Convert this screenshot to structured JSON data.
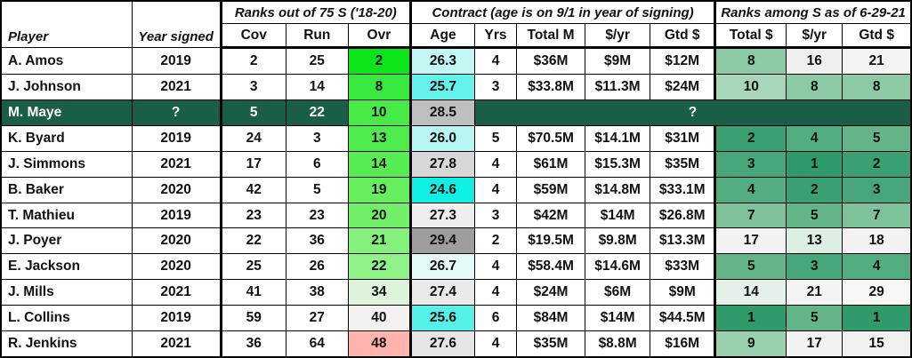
{
  "chart_data": {
    "type": "table",
    "header": {
      "player": "Player",
      "year_signed": "Year signed",
      "groups": [
        "Ranks out of 75 S ('18-20)",
        "Contract (age is on 9/1 in year of signing)",
        "Ranks among S as of 6-29-21"
      ],
      "subcols": [
        "Cov",
        "Run",
        "Ovr",
        "Age",
        "Yrs",
        "Total M",
        "$/yr",
        "Gtd $",
        "Total $",
        "$/yr",
        "Gtd $"
      ]
    },
    "rows": [
      {
        "player": "A. Amos",
        "year_signed": "2019",
        "cov": "2",
        "run": "25",
        "ovr": {
          "v": "2",
          "bg": "#0be51a"
        },
        "age": {
          "v": "26.3",
          "bg": "#c2f7f3"
        },
        "yrs": "4",
        "total_m": "$36M",
        "per_yr": "$9M",
        "gtd": "$12M",
        "rank_total": {
          "v": "8",
          "bg": "#8ccaa5"
        },
        "rank_per_yr": {
          "v": "16",
          "bg": "#efefef"
        },
        "rank_gtd": {
          "v": "21",
          "bg": "#f4f4f4"
        }
      },
      {
        "player": "J. Johnson",
        "year_signed": "2021",
        "cov": "3",
        "run": "14",
        "ovr": {
          "v": "8",
          "bg": "#38e83e"
        },
        "age": {
          "v": "25.7",
          "bg": "#63f2ec"
        },
        "yrs": "3",
        "total_m": "$33.8M",
        "per_yr": "$11.3M",
        "gtd": "$24M",
        "rank_total": {
          "v": "10",
          "bg": "#a7d7b8"
        },
        "rank_per_yr": {
          "v": "8",
          "bg": "#8ccaa5"
        },
        "rank_gtd": {
          "v": "8",
          "bg": "#8ccaa5"
        }
      },
      {
        "player": "M. Maye",
        "year_signed": "?",
        "cov": "5",
        "run": "22",
        "ovr": {
          "v": "10",
          "bg": "#47ea46"
        },
        "age": {
          "v": "28.5",
          "bg": "#bfbfbf"
        },
        "merged": "?",
        "highlight": true
      },
      {
        "player": "K. Byard",
        "year_signed": "2019",
        "cov": "24",
        "run": "3",
        "ovr": {
          "v": "13",
          "bg": "#4feb4d"
        },
        "age": {
          "v": "26.0",
          "bg": "#b7f6f2"
        },
        "yrs": "5",
        "total_m": "$70.5M",
        "per_yr": "$14.1M",
        "gtd": "$31M",
        "rank_total": {
          "v": "2",
          "bg": "#3aa071"
        },
        "rank_per_yr": {
          "v": "4",
          "bg": "#52ad80"
        },
        "rank_gtd": {
          "v": "5",
          "bg": "#63b589"
        }
      },
      {
        "player": "J. Simmons",
        "year_signed": "2021",
        "cov": "17",
        "run": "6",
        "ovr": {
          "v": "14",
          "bg": "#58ec53"
        },
        "age": {
          "v": "27.8",
          "bg": "#d7d7d7"
        },
        "yrs": "4",
        "total_m": "$61M",
        "per_yr": "$15.3M",
        "gtd": "$35M",
        "rank_total": {
          "v": "3",
          "bg": "#47a77a"
        },
        "rank_per_yr": {
          "v": "1",
          "bg": "#2f9a6a"
        },
        "rank_gtd": {
          "v": "2",
          "bg": "#3aa071"
        }
      },
      {
        "player": "B. Baker",
        "year_signed": "2020",
        "cov": "42",
        "run": "5",
        "ovr": {
          "v": "19",
          "bg": "#67ee5e"
        },
        "age": {
          "v": "24.6",
          "bg": "#10efe4"
        },
        "yrs": "4",
        "total_m": "$59M",
        "per_yr": "$14.8M",
        "gtd": "$33.1M",
        "rank_total": {
          "v": "4",
          "bg": "#52ad80"
        },
        "rank_per_yr": {
          "v": "2",
          "bg": "#3aa071"
        },
        "rank_gtd": {
          "v": "3",
          "bg": "#47a77a"
        }
      },
      {
        "player": "T. Mathieu",
        "year_signed": "2019",
        "cov": "23",
        "run": "23",
        "ovr": {
          "v": "20",
          "bg": "#71ef68"
        },
        "age": {
          "v": "27.3",
          "bg": "#efeeee"
        },
        "yrs": "3",
        "total_m": "$42M",
        "per_yr": "$14M",
        "gtd": "$26.8M",
        "rank_total": {
          "v": "7",
          "bg": "#7dc29b"
        },
        "rank_per_yr": {
          "v": "5",
          "bg": "#63b589"
        },
        "rank_gtd": {
          "v": "7",
          "bg": "#7dc29b"
        }
      },
      {
        "player": "J. Poyer",
        "year_signed": "2020",
        "cov": "22",
        "run": "36",
        "ovr": {
          "v": "21",
          "bg": "#85f17d"
        },
        "age": {
          "v": "29.4",
          "bg": "#9e9e9e"
        },
        "yrs": "2",
        "total_m": "$19.5M",
        "per_yr": "$9.8M",
        "gtd": "$13.3M",
        "rank_total": {
          "v": "17",
          "bg": "#f2f2f2"
        },
        "rank_per_yr": {
          "v": "13",
          "bg": "#dcefe3"
        },
        "rank_gtd": {
          "v": "18",
          "bg": "#f2f2f2"
        }
      },
      {
        "player": "E. Jackson",
        "year_signed": "2020",
        "cov": "25",
        "run": "26",
        "ovr": {
          "v": "22",
          "bg": "#91f28a"
        },
        "age": {
          "v": "26.7",
          "bg": "#e4faf8"
        },
        "yrs": "4",
        "total_m": "$58.4M",
        "per_yr": "$14.6M",
        "gtd": "$33M",
        "rank_total": {
          "v": "5",
          "bg": "#63b589"
        },
        "rank_per_yr": {
          "v": "3",
          "bg": "#47a77a"
        },
        "rank_gtd": {
          "v": "4",
          "bg": "#52ad80"
        }
      },
      {
        "player": "J. Mills",
        "year_signed": "2021",
        "cov": "41",
        "run": "38",
        "ovr": {
          "v": "34",
          "bg": "#def3dc"
        },
        "age": {
          "v": "27.4",
          "bg": "#eaeaea"
        },
        "yrs": "4",
        "total_m": "$24M",
        "per_yr": "$6M",
        "gtd": "$9M",
        "rank_total": {
          "v": "14",
          "bg": "#e4f1e8"
        },
        "rank_per_yr": {
          "v": "21",
          "bg": "#f4f4f4"
        },
        "rank_gtd": {
          "v": "29",
          "bg": "#f7f7f7"
        }
      },
      {
        "player": "L. Collins",
        "year_signed": "2019",
        "cov": "59",
        "run": "27",
        "ovr": {
          "v": "40",
          "bg": "#f2f1ef"
        },
        "age": {
          "v": "25.6",
          "bg": "#55f1e9"
        },
        "yrs": "6",
        "total_m": "$84M",
        "per_yr": "$14M",
        "gtd": "$44.5M",
        "rank_total": {
          "v": "1",
          "bg": "#2f9a6a"
        },
        "rank_per_yr": {
          "v": "5",
          "bg": "#63b589"
        },
        "rank_gtd": {
          "v": "1",
          "bg": "#2f9a6a"
        }
      },
      {
        "player": "R. Jenkins",
        "year_signed": "2021",
        "cov": "36",
        "run": "64",
        "ovr": {
          "v": "48",
          "bg": "#ffb3ad"
        },
        "age": {
          "v": "27.6",
          "bg": "#e5e5e5"
        },
        "yrs": "4",
        "total_m": "$35M",
        "per_yr": "$8.8M",
        "gtd": "$16M",
        "rank_total": {
          "v": "9",
          "bg": "#99d0ae"
        },
        "rank_per_yr": {
          "v": "17",
          "bg": "#f2f2f2"
        },
        "rank_gtd": {
          "v": "15",
          "bg": "#eff1ee"
        }
      }
    ],
    "colors": {
      "highlight_row_bg": "#1b5e48",
      "highlight_row_text": "#ffffff",
      "ovr_scale_best": "#0be51a",
      "ovr_scale_worst": "#ffb3ad",
      "age_scale_young": "#10efe4",
      "age_scale_old": "#9e9e9e",
      "rank_scale_top": "#2f9a6a",
      "rank_scale_bottom": "#f7f7f7",
      "border": "#000000"
    }
  }
}
